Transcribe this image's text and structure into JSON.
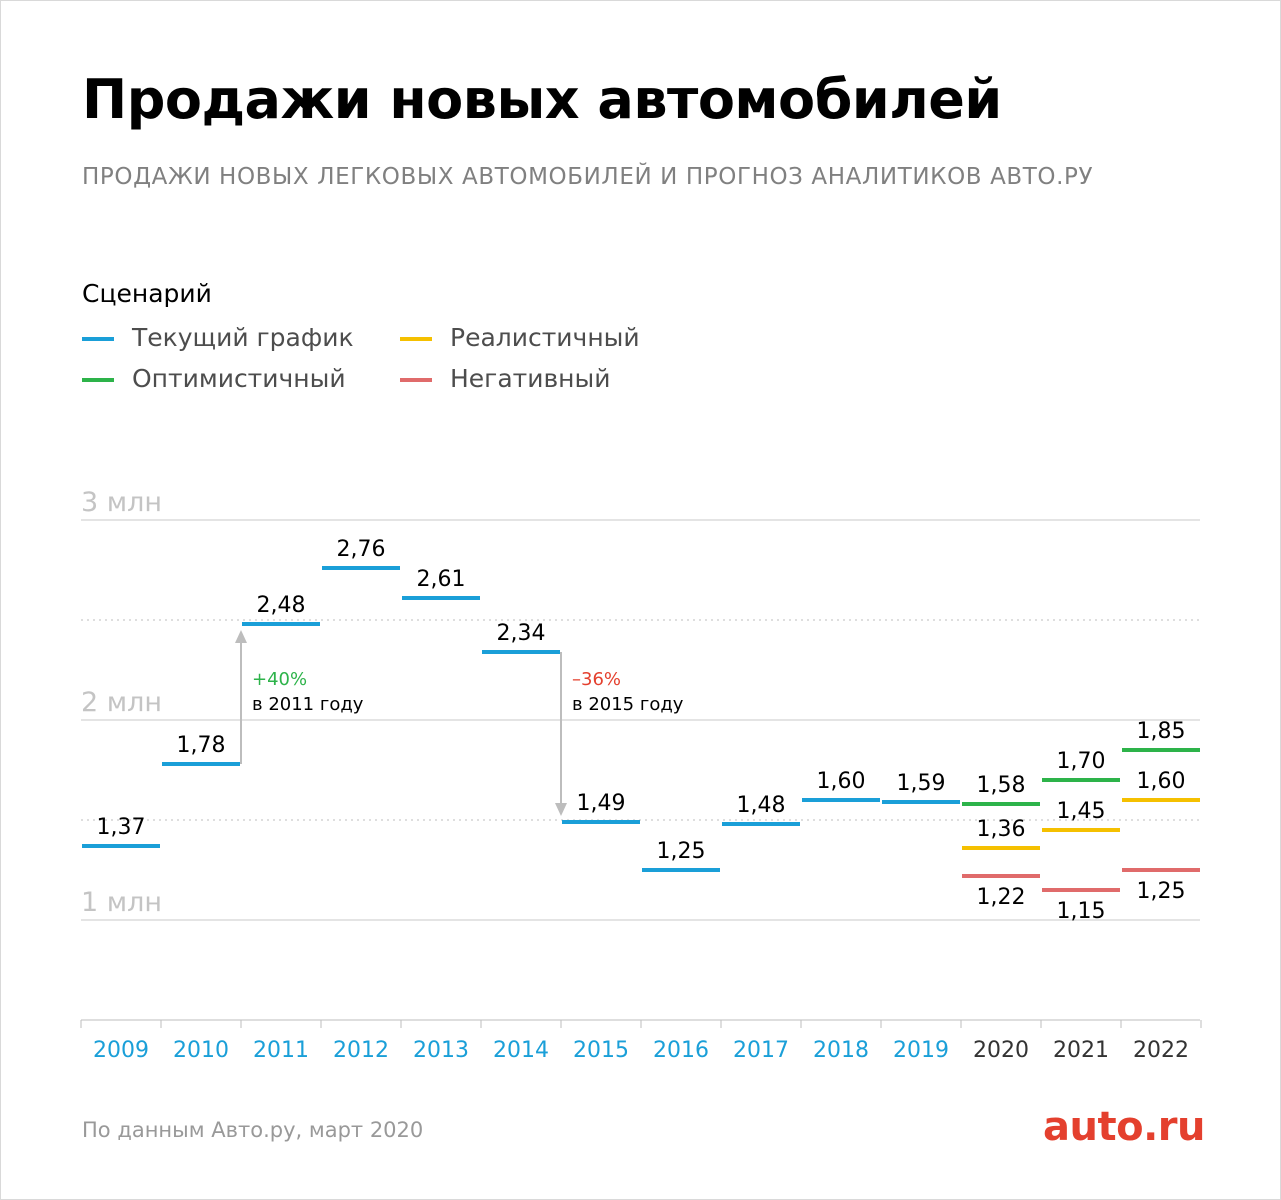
{
  "title": "Продажи новых автомобилей",
  "subtitle": "ПРОДАЖИ НОВЫХ ЛЕГКОВЫХ АВТОМОБИЛЕЙ И ПРОГНОЗ АНАЛИТИКОВ АВТО.РУ",
  "legend": {
    "title": "Сценарий",
    "items": [
      {
        "label": "Текущий график",
        "color": "#1a9fd8"
      },
      {
        "label": "Реалистичный",
        "color": "#f5c000"
      },
      {
        "label": "Оптимистичный",
        "color": "#2db34a"
      },
      {
        "label": "Негативный",
        "color": "#e06b6b"
      }
    ]
  },
  "source": "По данным Авто.ру, март 2020",
  "logo": "auto.ru",
  "chart_data": {
    "type": "line",
    "categories": [
      "2009",
      "2010",
      "2011",
      "2012",
      "2013",
      "2014",
      "2015",
      "2016",
      "2017",
      "2018",
      "2019",
      "2020",
      "2021",
      "2022"
    ],
    "ylim": [
      0.5,
      3.1
    ],
    "yticks": [
      {
        "value": 3,
        "label": "3 млн"
      },
      {
        "value": 2,
        "label": "2 млн"
      },
      {
        "value": 1,
        "label": "1 млн"
      }
    ],
    "dotted_gridlines": [
      2.5,
      1.5
    ],
    "series": [
      {
        "name": "Текущий график",
        "color": "#1a9fd8",
        "values": [
          1.37,
          1.78,
          2.48,
          2.76,
          2.61,
          2.34,
          1.49,
          1.25,
          1.48,
          1.6,
          1.59,
          null,
          null,
          null
        ],
        "labels": [
          "1,37",
          "1,78",
          "2,48",
          "2,76",
          "2,61",
          "2,34",
          "1,49",
          "1,25",
          "1,48",
          "1,60",
          "1,59",
          null,
          null,
          null
        ]
      },
      {
        "name": "Оптимистичный",
        "color": "#2db34a",
        "values": [
          null,
          null,
          null,
          null,
          null,
          null,
          null,
          null,
          null,
          null,
          null,
          1.58,
          1.7,
          1.85
        ],
        "labels": [
          null,
          null,
          null,
          null,
          null,
          null,
          null,
          null,
          null,
          null,
          null,
          "1,58",
          "1,70",
          "1,85"
        ]
      },
      {
        "name": "Реалистичный",
        "color": "#f5c000",
        "values": [
          null,
          null,
          null,
          null,
          null,
          null,
          null,
          null,
          null,
          null,
          null,
          1.36,
          1.45,
          1.6
        ],
        "labels": [
          null,
          null,
          null,
          null,
          null,
          null,
          null,
          null,
          null,
          null,
          null,
          "1,36",
          "1,45",
          "1,60"
        ]
      },
      {
        "name": "Негативный",
        "color": "#e06b6b",
        "values": [
          null,
          null,
          null,
          null,
          null,
          null,
          null,
          null,
          null,
          null,
          null,
          1.22,
          1.15,
          1.25
        ],
        "labels": [
          null,
          null,
          null,
          null,
          null,
          null,
          null,
          null,
          null,
          null,
          null,
          "1,22",
          "1,15",
          "1,25"
        ]
      }
    ],
    "annotations": [
      {
        "change": "+40%",
        "text": "в 2011 году",
        "color": "#2db34a",
        "from_year": "2010",
        "from": 1.78,
        "to": 2.48
      },
      {
        "change": "–36%",
        "text": "в 2015 году",
        "color": "#e4402e",
        "from_year": "2014",
        "from": 2.34,
        "to": 1.49
      }
    ],
    "historical_year_color": "#1a9fd8",
    "forecast_year_color": "#333333",
    "forecast_from": "2020"
  }
}
